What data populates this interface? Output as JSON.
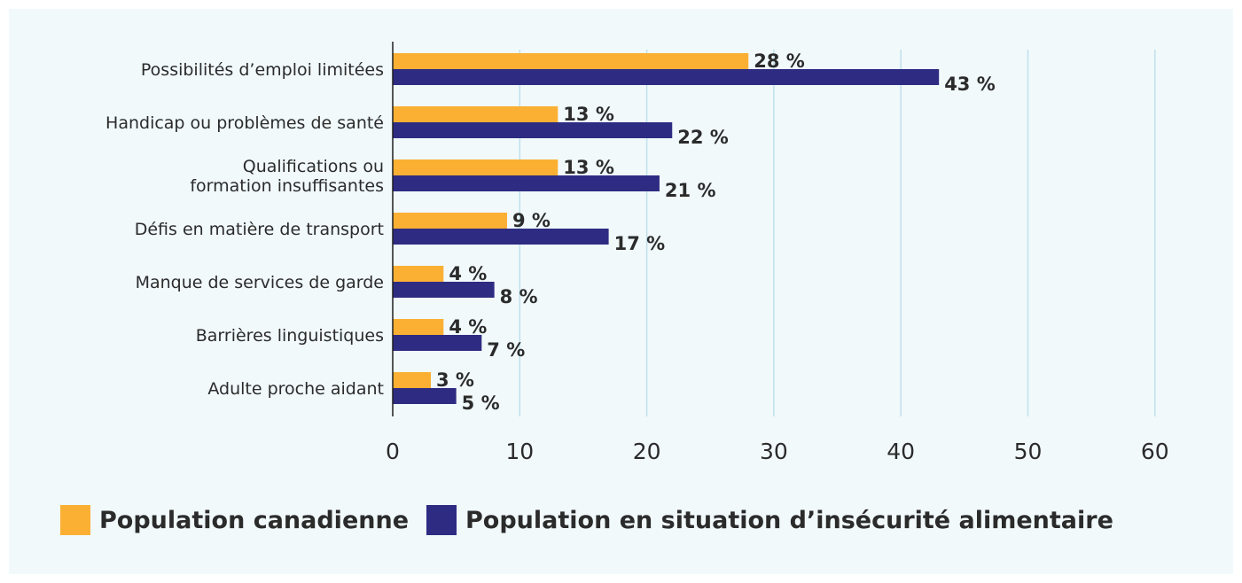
{
  "chart_data": {
    "type": "bar",
    "orientation": "horizontal",
    "categories": [
      [
        "Possibilités d’emploi limitées"
      ],
      [
        "Handicap ou problèmes de santé"
      ],
      [
        "Qualifications ou",
        "formation insuffisantes"
      ],
      [
        "Défis en matière de transport"
      ],
      [
        "Manque de services de garde"
      ],
      [
        "Barrières linguistiques"
      ],
      [
        "Adulte proche aidant"
      ]
    ],
    "series": [
      {
        "name": "Population canadienne",
        "color": "#fbb034",
        "values": [
          28,
          13,
          13,
          9,
          4,
          4,
          3
        ],
        "labels": [
          "28 %",
          "13 %",
          "13 %",
          "9 %",
          "4 %",
          "4 %",
          "3 %"
        ]
      },
      {
        "name": "Population en situation d’insécurité alimentaire",
        "color": "#2e2c82",
        "values": [
          43,
          22,
          21,
          17,
          8,
          7,
          5
        ],
        "labels": [
          "43 %",
          "22 %",
          "21 %",
          "17 %",
          "8 %",
          "7 %",
          "5 %"
        ]
      }
    ],
    "xlim": [
      0,
      60
    ],
    "xticks": [
      0,
      10,
      20,
      30,
      40,
      50,
      60
    ],
    "grid": true,
    "legend_position": "bottom-left"
  }
}
